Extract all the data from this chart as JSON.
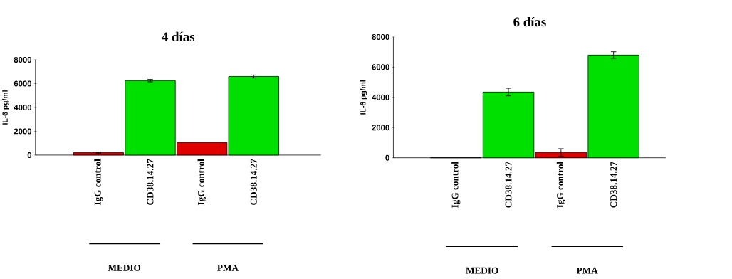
{
  "chart_data": [
    {
      "type": "bar",
      "title": "4 días",
      "ylabel": "IL-6 pg/ml",
      "categories": [
        "IgG control",
        "CD38.14.27",
        "IgG control",
        "CD38.14.27"
      ],
      "values": [
        200,
        6250,
        1050,
        6600
      ],
      "errors": [
        40,
        100,
        null,
        120
      ],
      "colors": [
        "#e00000",
        "#00e000",
        "#e00000",
        "#00e000"
      ],
      "ylim": [
        0,
        8000
      ],
      "yticks": [
        0,
        2000,
        4000,
        6000,
        8000
      ],
      "annotations": [
        "MEDIO",
        "PMA"
      ]
    },
    {
      "type": "bar",
      "title": "6 días",
      "ylabel": "IL-6 pg/ml",
      "categories": [
        "IgG control",
        "CD38.14.27",
        "IgG control",
        "CD38.14.27"
      ],
      "values": [
        0,
        4350,
        350,
        6800
      ],
      "errors": [
        null,
        250,
        250,
        220
      ],
      "colors": [
        "#e00000",
        "#00e000",
        "#e00000",
        "#00e000"
      ],
      "ylim": [
        0,
        8000
      ],
      "yticks": [
        0,
        2000,
        4000,
        6000,
        8000
      ],
      "annotations": [
        "MEDIO",
        "PMA"
      ]
    }
  ]
}
